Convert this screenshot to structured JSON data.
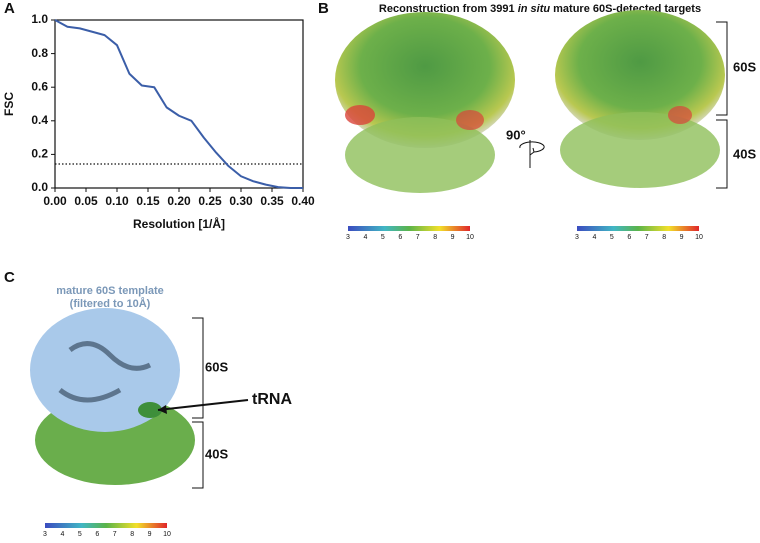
{
  "panels": {
    "a": "A",
    "b": "B",
    "c": "C"
  },
  "chart_data": {
    "type": "line",
    "x_label": "Resolution [1/Å]",
    "y_label": "FSC",
    "xlim": [
      0,
      0.4
    ],
    "ylim": [
      0,
      1
    ],
    "xticks": [
      {
        "value": 0,
        "label": "0.00"
      },
      0.05,
      {
        "value": 0.1,
        "label": "0.10"
      },
      0.15,
      {
        "value": 0.2,
        "label": "0.20"
      },
      0.25,
      {
        "value": 0.3,
        "label": "0.30"
      },
      0.35,
      {
        "value": 0.4,
        "label": "0.40"
      }
    ],
    "yticks": [
      {
        "value": 0,
        "label": "0.0"
      },
      0.2,
      0.4,
      0.6,
      0.8,
      {
        "value": 1,
        "label": "1.0"
      }
    ],
    "x": [
      0,
      0.02,
      0.04,
      0.06,
      0.08,
      0.1,
      0.12,
      0.14,
      0.16,
      0.18,
      0.2,
      0.22,
      0.24,
      0.26,
      0.28,
      0.3,
      0.32,
      0.34,
      0.36,
      0.38,
      0.4
    ],
    "series": [
      {
        "color": "#3b5ea8",
        "values": [
          1.0,
          0.96,
          0.95,
          0.93,
          0.91,
          0.85,
          0.68,
          0.61,
          0.6,
          0.48,
          0.43,
          0.4,
          0.3,
          0.21,
          0.13,
          0.07,
          0.04,
          0.02,
          0.005,
          0,
          0
        ]
      }
    ],
    "threshold": 0.143
  },
  "panel_b": {
    "title_parts": [
      "Reconstruction from 3991 ",
      "in situ",
      " mature 60S-detected targets"
    ],
    "rotation": "90°",
    "upper": "60S",
    "lower": "40S"
  },
  "panel_c": {
    "template": "mature 60S template",
    "filter": "(filtered to 10Å)",
    "upper": "60S",
    "trna": "tRNA",
    "lower": "40S"
  },
  "colorbar": {
    "ticks": [
      3,
      4,
      5,
      6,
      7,
      8,
      9,
      10
    ]
  }
}
